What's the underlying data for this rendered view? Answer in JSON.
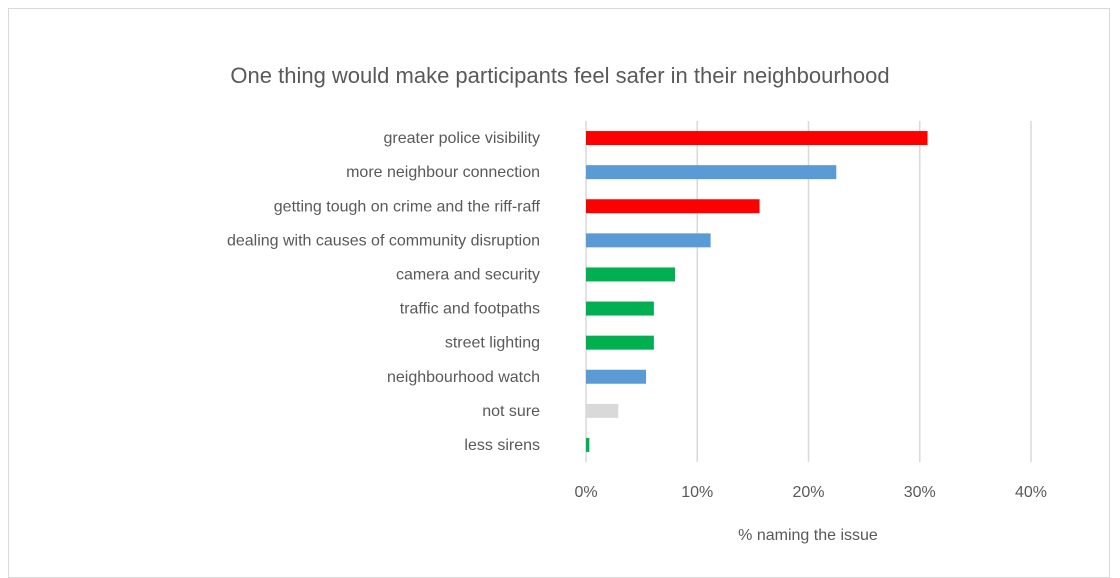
{
  "chart_data": {
    "type": "bar",
    "orientation": "horizontal",
    "title": "One thing would make participants feel safer in their neighbourhood",
    "xlabel": "% naming the issue",
    "ylabel": "",
    "xlim": [
      0,
      40
    ],
    "x_ticks": [
      "0%",
      "10%",
      "20%",
      "30%",
      "40%"
    ],
    "grid": true,
    "legend": "none",
    "categories": [
      "greater police visibility",
      "more neighbour connection",
      "getting tough on crime and the riff-raff",
      "dealing with causes of community disruption",
      "camera and security",
      "traffic and footpaths",
      "street lighting",
      "neighbourhood watch",
      "not sure",
      "less sirens"
    ],
    "values": [
      30.7,
      22.5,
      15.6,
      11.2,
      8.0,
      6.1,
      6.1,
      5.4,
      2.9,
      0.3
    ],
    "bar_colors": [
      "#ff0000",
      "#5b9bd5",
      "#ff0000",
      "#5b9bd5",
      "#00b050",
      "#00b050",
      "#00b050",
      "#5b9bd5",
      "#d9d9d9",
      "#00b050"
    ],
    "grid_color": "#d9d9d9"
  }
}
